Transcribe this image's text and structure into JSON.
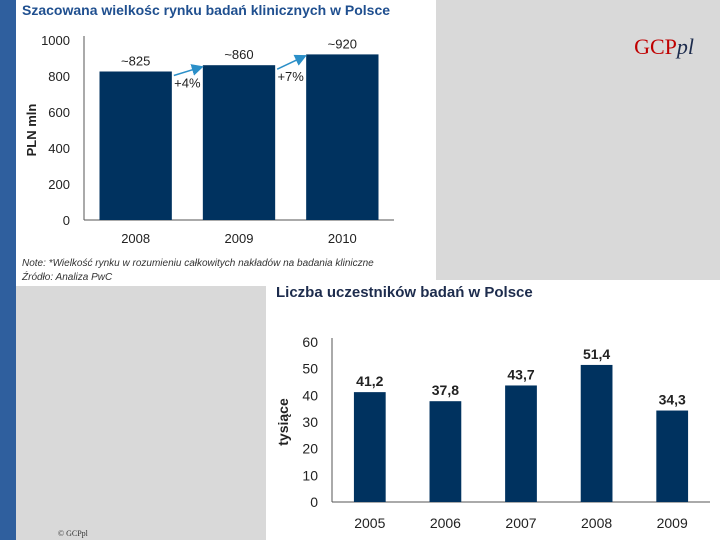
{
  "brand": {
    "main": "GCP",
    "suffix": "pl"
  },
  "footer": {
    "copyright": "© GCPpl"
  },
  "colors": {
    "bar": "#00325f",
    "arrow": "#2b8fc8",
    "left_band": "#2f5f9e"
  },
  "chart_data": [
    {
      "type": "bar",
      "title": "Szacowana wielkośc rynku badań klinicznych w Polsce",
      "categories": [
        "2008",
        "2009",
        "2010"
      ],
      "values": [
        825,
        860,
        920
      ],
      "value_labels": [
        "~825",
        "~860",
        "~920"
      ],
      "growth_labels": [
        "+4%",
        "+7%"
      ],
      "ylabel": "PLN mln",
      "xlabel": "",
      "ylim": [
        0,
        1000
      ],
      "yticks": [
        "0",
        "200",
        "400",
        "600",
        "800",
        "1000"
      ],
      "grid": false,
      "notes": [
        "Note: *Wielkość rynku w rozumieniu całkowitych nakładów na badania kliniczne",
        "Źródło: Analiza PwC"
      ]
    },
    {
      "type": "bar",
      "title": "Liczba uczestników badań w Polsce",
      "categories": [
        "2005",
        "2006",
        "2007",
        "2008",
        "2009"
      ],
      "values": [
        41.2,
        37.8,
        43.7,
        51.4,
        34.3
      ],
      "value_labels": [
        "41,2",
        "37,8",
        "43,7",
        "51,4",
        "34,3"
      ],
      "ylabel": "tysiące",
      "xlabel": "",
      "ylim": [
        0,
        60
      ],
      "yticks": [
        "0",
        "10",
        "20",
        "30",
        "40",
        "50",
        "60"
      ],
      "grid": false
    }
  ]
}
